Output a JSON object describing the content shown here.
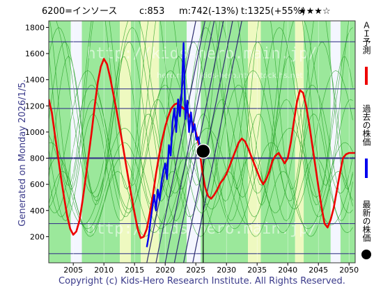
{
  "header": {
    "code": "6200=インソース",
    "current": "c:853",
    "mean": "m:742(-13%)",
    "target": "t:1325(+55%)",
    "rating": "★★★☆"
  },
  "side_label": "Generated on Monday 2026/1/5.",
  "footer": "Copyright (c) Kids-Hero Research Institute. All Rights Reserved.",
  "watermark": "http://kids-hero.main.jp/",
  "watermark2": "hero.m... ...kids-hero.htmlstock.hs.net",
  "legend": [
    {
      "name": "ＡＩ予測",
      "color": "#ee0000"
    },
    {
      "name": "過去の株価",
      "color": "#0000ee"
    },
    {
      "name": "最新の株価",
      "color": "#000000"
    }
  ],
  "chart_data": {
    "type": "line",
    "xlim": [
      2001,
      2051
    ],
    "ylim": [
      0,
      1850
    ],
    "x_ticks": [
      2005,
      2010,
      2015,
      2020,
      2025,
      2030,
      2035,
      2040,
      2045,
      2050
    ],
    "y_ticks": [
      200,
      400,
      600,
      800,
      1000,
      1200,
      1400,
      1600,
      1800
    ],
    "h_levels": [
      70,
      300,
      800,
      1180,
      1330,
      1690
    ],
    "h_levels_bold": [
      800
    ],
    "latest_point": {
      "x": 2026.2,
      "y": 853
    },
    "latest_marker_drop": 2026.2,
    "ai_forecast": {
      "x": [
        2001.0,
        2001.5,
        2002.0,
        2002.5,
        2003.0,
        2003.5,
        2004.0,
        2004.5,
        2005.0,
        2005.5,
        2006.0,
        2006.5,
        2007.0,
        2007.5,
        2008.0,
        2008.5,
        2009.0,
        2009.5,
        2010.0,
        2010.5,
        2011.0,
        2011.5,
        2012.0,
        2012.5,
        2013.0,
        2013.5,
        2014.0,
        2014.5,
        2015.0,
        2015.5,
        2016.0,
        2016.5,
        2017.0,
        2017.5,
        2018.0,
        2018.5,
        2019.0,
        2019.5,
        2020.0,
        2020.5,
        2021.0,
        2021.5,
        2022.0,
        2022.5,
        2023.0,
        2023.5,
        2024.0,
        2024.5,
        2025.0,
        2025.5,
        2026.0,
        2026.5,
        2027.0,
        2027.5,
        2028.0,
        2028.5,
        2029.0,
        2029.5,
        2030.0,
        2030.5,
        2031.0,
        2031.5,
        2032.0,
        2032.5,
        2033.0,
        2033.5,
        2034.0,
        2034.5,
        2035.0,
        2035.5,
        2036.0,
        2036.5,
        2037.0,
        2037.5,
        2038.0,
        2038.5,
        2039.0,
        2039.5,
        2040.0,
        2040.5,
        2041.0,
        2041.5,
        2042.0,
        2042.5,
        2043.0,
        2043.5,
        2044.0,
        2044.5,
        2045.0,
        2045.5,
        2046.0,
        2046.5,
        2047.0,
        2047.5,
        2048.0,
        2048.5,
        2049.0,
        2049.5,
        2050.0,
        2050.5,
        2051.0
      ],
      "y": [
        1250,
        1150,
        980,
        820,
        650,
        500,
        360,
        260,
        215,
        240,
        320,
        470,
        640,
        820,
        1000,
        1200,
        1380,
        1500,
        1560,
        1520,
        1420,
        1300,
        1180,
        1050,
        920,
        780,
        640,
        510,
        380,
        260,
        190,
        200,
        260,
        380,
        520,
        680,
        820,
        940,
        1040,
        1120,
        1180,
        1210,
        1220,
        1200,
        1180,
        1160,
        1120,
        1060,
        1000,
        900,
        720,
        580,
        510,
        490,
        520,
        560,
        610,
        640,
        680,
        740,
        800,
        860,
        920,
        950,
        930,
        880,
        820,
        760,
        700,
        640,
        600,
        640,
        700,
        780,
        820,
        840,
        800,
        760,
        800,
        920,
        1080,
        1230,
        1320,
        1300,
        1200,
        1060,
        900,
        740,
        580,
        430,
        300,
        270,
        330,
        420,
        550,
        680,
        800,
        830,
        840,
        840,
        840
      ]
    },
    "past_prices": {
      "x": [
        2017.0,
        2017.3,
        2017.6,
        2017.9,
        2018.2,
        2018.5,
        2018.8,
        2019.1,
        2019.4,
        2019.7,
        2020.0,
        2020.3,
        2020.6,
        2020.9,
        2021.2,
        2021.5,
        2021.8,
        2022.1,
        2022.4,
        2022.7,
        2023.0,
        2023.3,
        2023.6,
        2023.9,
        2024.2,
        2024.5,
        2024.8,
        2025.1,
        2025.4,
        2025.7,
        2026.0,
        2026.2
      ],
      "y": [
        120,
        200,
        320,
        420,
        520,
        400,
        560,
        480,
        620,
        700,
        760,
        640,
        900,
        820,
        1080,
        1180,
        1000,
        1250,
        1120,
        1300,
        1680,
        1100,
        1240,
        1000,
        1150,
        1000,
        1060,
        940,
        960,
        880,
        870,
        853
      ]
    },
    "trend_lines": [
      {
        "x": [
          2017.0,
          2025.0
        ],
        "y": [
          0,
          1850
        ]
      },
      {
        "x": [
          2018.5,
          2026.5
        ],
        "y": [
          0,
          1850
        ]
      },
      {
        "x": [
          2020.0,
          2028.0
        ],
        "y": [
          0,
          1850
        ]
      },
      {
        "x": [
          2021.5,
          2029.5
        ],
        "y": [
          0,
          1850
        ]
      },
      {
        "x": [
          2023.0,
          2031.0
        ],
        "y": [
          0,
          1850
        ]
      },
      {
        "x": [
          2024.5,
          2032.5
        ],
        "y": [
          0,
          1850
        ]
      }
    ],
    "bands": [
      {
        "x0": 2001.0,
        "x1": 2004.6,
        "color": "#9be89b"
      },
      {
        "x0": 2004.6,
        "x1": 2006.4,
        "color": "#f4f6ff"
      },
      {
        "x0": 2006.4,
        "x1": 2012.6,
        "color": "#9be89b"
      },
      {
        "x0": 2012.6,
        "x1": 2014.4,
        "color": "#eef9c0"
      },
      {
        "x0": 2014.4,
        "x1": 2016.0,
        "color": "#9be89b"
      },
      {
        "x0": 2016.0,
        "x1": 2019.0,
        "color": "#eef9c0"
      },
      {
        "x0": 2019.0,
        "x1": 2023.5,
        "color": "#9be89b"
      },
      {
        "x0": 2023.5,
        "x1": 2025.8,
        "color": "#f4f6ff"
      },
      {
        "x0": 2025.8,
        "x1": 2033.5,
        "color": "#9be89b"
      },
      {
        "x0": 2033.5,
        "x1": 2035.6,
        "color": "#eef9c0"
      },
      {
        "x0": 2035.6,
        "x1": 2041.2,
        "color": "#9be89b"
      },
      {
        "x0": 2041.2,
        "x1": 2042.6,
        "color": "#eef9c0"
      },
      {
        "x0": 2042.6,
        "x1": 2047.0,
        "color": "#9be89b"
      },
      {
        "x0": 2047.0,
        "x1": 2048.6,
        "color": "#f4f6ff"
      },
      {
        "x0": 2048.6,
        "x1": 2051.0,
        "color": "#9be89b"
      }
    ]
  }
}
